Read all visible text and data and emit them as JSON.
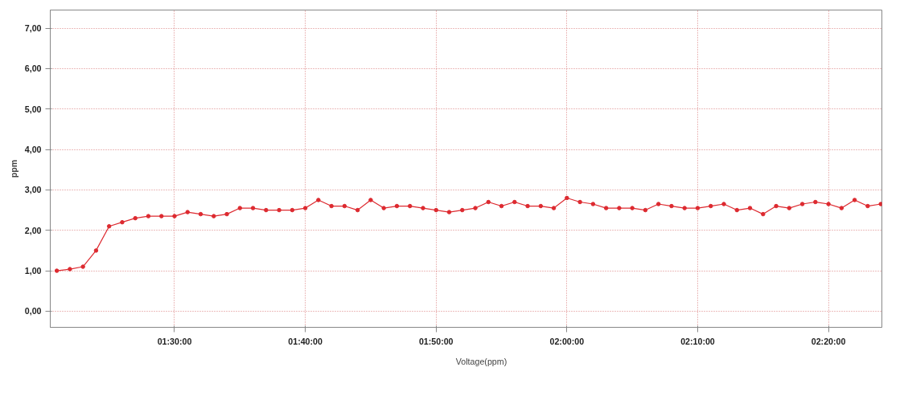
{
  "chart_data": {
    "type": "line",
    "ylabel": "ppm",
    "x": [
      1.35,
      1.366667,
      1.383333,
      1.4,
      1.416667,
      1.433333,
      1.45,
      1.466667,
      1.483333,
      1.5,
      1.516667,
      1.533333,
      1.55,
      1.566667,
      1.583333,
      1.6,
      1.616667,
      1.633333,
      1.65,
      1.666667,
      1.683333,
      1.7,
      1.716667,
      1.733333,
      1.75,
      1.766667,
      1.783333,
      1.8,
      1.816667,
      1.833333,
      1.85,
      1.866667,
      1.883333,
      1.9,
      1.916667,
      1.933333,
      1.95,
      1.966667,
      1.983333,
      2.0,
      2.016667,
      2.033333,
      2.05,
      2.066667,
      2.083333,
      2.1,
      2.116667,
      2.133333,
      2.15,
      2.166667,
      2.183333,
      2.2,
      2.216667,
      2.233333,
      2.25,
      2.266667,
      2.283333,
      2.3,
      2.316667,
      2.333333,
      2.35,
      2.366667,
      2.383333,
      2.4
    ],
    "series": [
      {
        "name": "Voltage(ppm)",
        "color": "#dd2a30",
        "values": [
          1.0,
          1.04,
          1.1,
          1.5,
          2.1,
          2.2,
          2.3,
          2.35,
          2.35,
          2.35,
          2.45,
          2.4,
          2.35,
          2.4,
          2.55,
          2.55,
          2.5,
          2.5,
          2.5,
          2.55,
          2.75,
          2.6,
          2.6,
          2.5,
          2.75,
          2.55,
          2.6,
          2.6,
          2.55,
          2.5,
          2.45,
          2.5,
          2.55,
          2.7,
          2.6,
          2.7,
          2.6,
          2.6,
          2.55,
          2.8,
          2.7,
          2.65,
          2.55,
          2.55,
          2.55,
          2.5,
          2.65,
          2.6,
          2.55,
          2.55,
          2.6,
          2.65,
          2.5,
          2.55,
          2.4,
          2.6,
          2.55,
          2.65,
          2.7,
          2.65,
          2.55,
          2.75,
          2.6,
          2.65
        ]
      }
    ],
    "xlim": [
      1.341667,
      2.401389
    ],
    "ylim": [
      -0.4,
      7.45
    ],
    "xticks": [
      {
        "value": 1.5,
        "label": "01:30:00"
      },
      {
        "value": 1.666667,
        "label": "01:40:00"
      },
      {
        "value": 1.833333,
        "label": "01:50:00"
      },
      {
        "value": 2.0,
        "label": "02:00:00"
      },
      {
        "value": 2.166667,
        "label": "02:10:00"
      },
      {
        "value": 2.333333,
        "label": "02:20:00"
      }
    ],
    "yticks": [
      {
        "value": 0,
        "label": "0,00"
      },
      {
        "value": 1,
        "label": "1,00"
      },
      {
        "value": 2,
        "label": "2,00"
      },
      {
        "value": 3,
        "label": "3,00"
      },
      {
        "value": 4,
        "label": "4,00"
      },
      {
        "value": 5,
        "label": "5,00"
      },
      {
        "value": 6,
        "label": "6,00"
      },
      {
        "value": 7,
        "label": "7,00"
      }
    ],
    "grid": true,
    "legend": "bottom",
    "marker": "circle",
    "line_style": "solid"
  }
}
